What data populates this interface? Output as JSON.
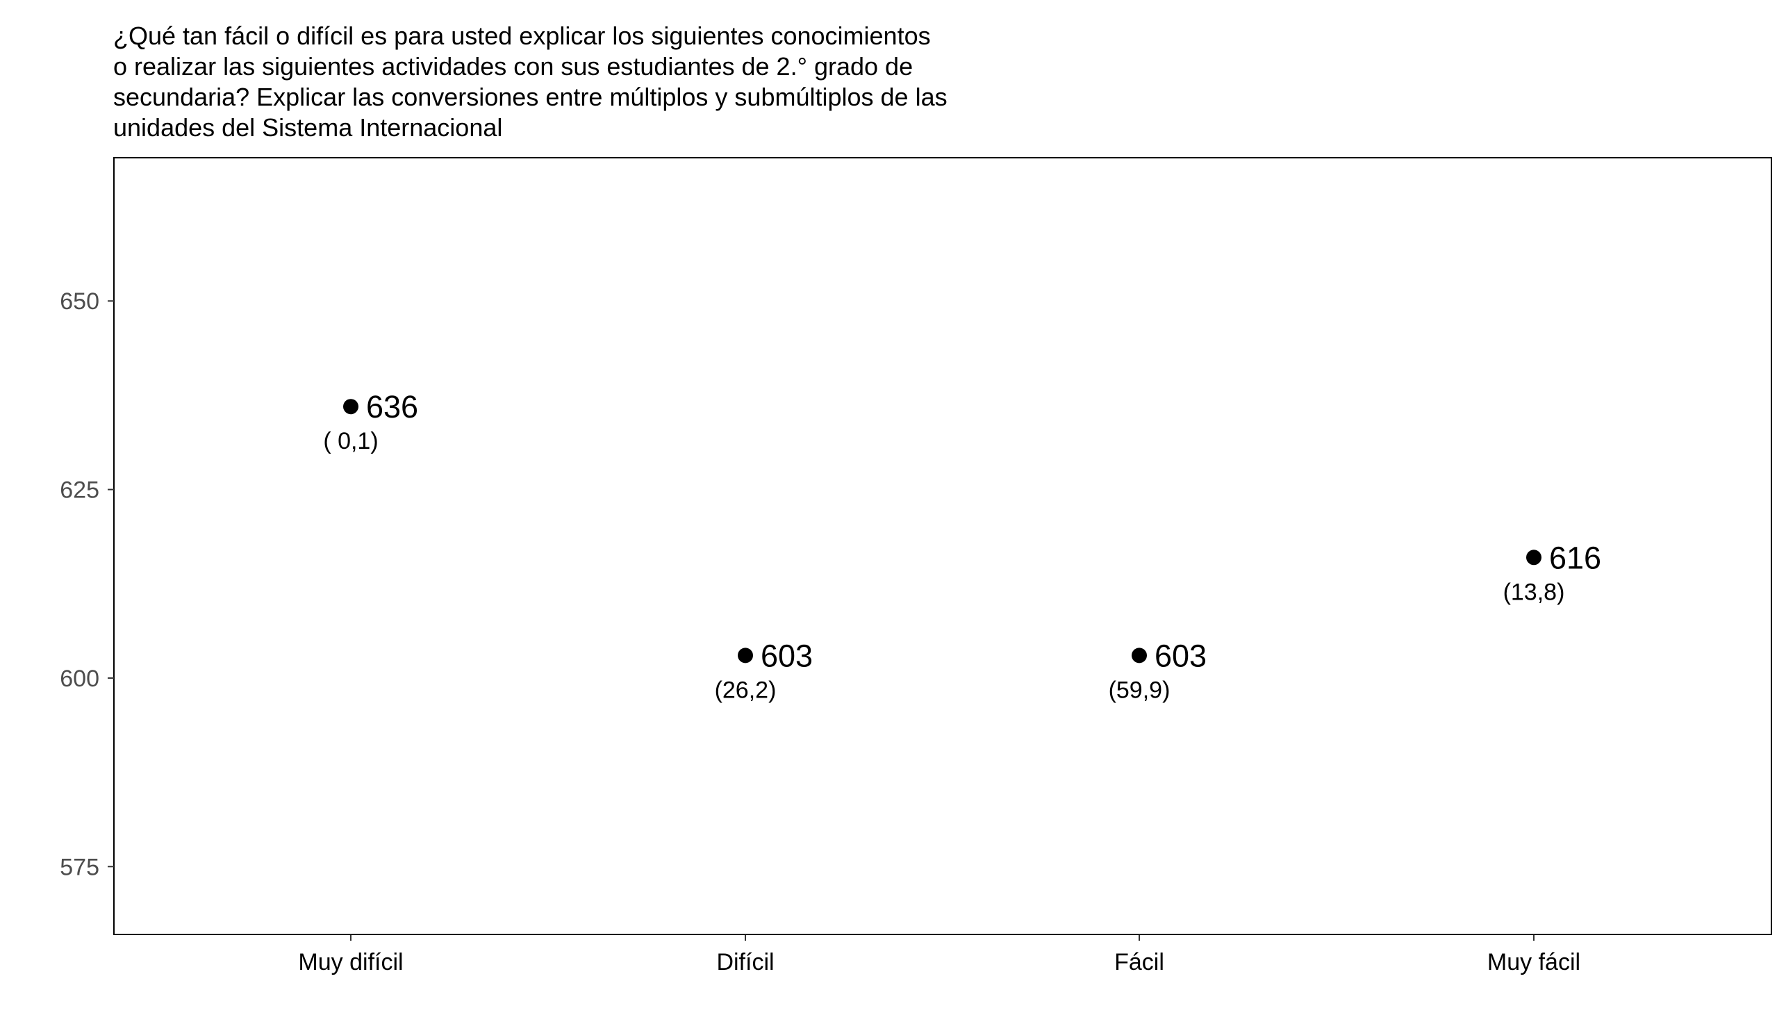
{
  "chart_data": {
    "type": "scatter",
    "title_lines": [
      "¿Qué tan fácil o difícil es para usted explicar los siguientes conocimientos",
      "o realizar las siguientes actividades con sus estudiantes de 2.° grado de",
      "secundaria? Explicar las conversiones entre múltiplos y submúltiplos de las",
      "unidades del Sistema Internacional"
    ],
    "xlabel": "",
    "ylabel": "",
    "categories": [
      "Muy difícil",
      "Difícil",
      "Fácil",
      "Muy fácil"
    ],
    "values": [
      636,
      603,
      603,
      616
    ],
    "value_labels": [
      "636",
      "603",
      "603",
      "616"
    ],
    "percent_labels": [
      "( 0,1)",
      "(26,2)",
      "(59,9)",
      "(13,8)"
    ],
    "ylim": [
      566,
      669
    ],
    "yticks": [
      575,
      600,
      625,
      650
    ],
    "grid": false,
    "legend": "none",
    "colors": {
      "point": "#000000",
      "frame": "#000000",
      "tick_text": "#4d4d4d"
    }
  }
}
